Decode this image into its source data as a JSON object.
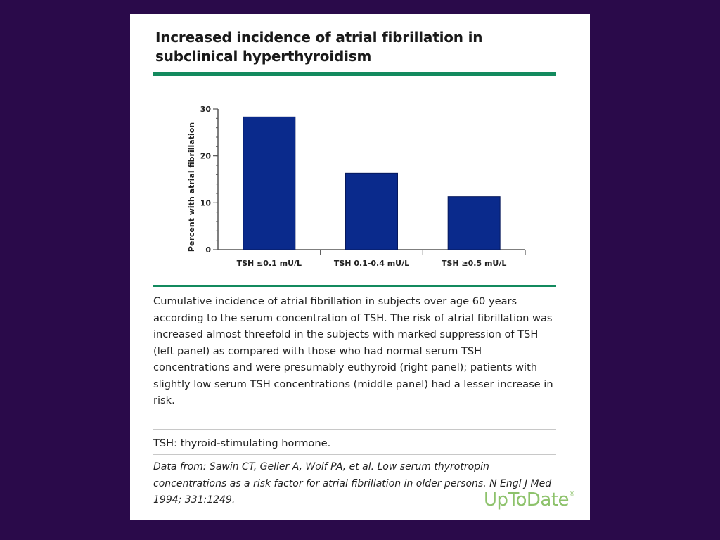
{
  "figure": {
    "title": "Increased incidence of atrial fibrillation in subclinical hyperthyroidism",
    "caption": "Cumulative incidence of atrial fibrillation in subjects over age 60 years according to the serum concentration of TSH. The risk of atrial fibrillation was increased almost threefold in the subjects with marked suppression of TSH (left panel) as compared with those who had normal serum TSH concentrations and were presumably euthyroid (right panel); patients with slightly low serum TSH concentrations (middle panel) had a lesser increase in risk.",
    "abbreviation": "TSH: thyroid-stimulating hormone.",
    "source": "Data from: Sawin CT, Geller A, Wolf PA, et al. Low serum thyrotropin concentrations as a risk factor for atrial fibrillation in older persons. N Engl J Med 1994; 331:1249.",
    "logo_text": "UpToDate",
    "logo_mark": "®",
    "colors": {
      "background": "#2a0a4a",
      "card": "#ffffff",
      "accent_rule": "#138a5e",
      "bar_fill": "#0a2a8c",
      "logo": "#8dc26b"
    }
  },
  "chart_data": {
    "type": "bar",
    "title": "",
    "categories": [
      "TSH ≤0.1 mU/L",
      "TSH 0.1-0.4 mU/L",
      "TSH ≥0.5 mU/L"
    ],
    "values": [
      28.3,
      16.3,
      11.3
    ],
    "xlabel": "",
    "ylabel": "Percent with atrial fibrillation",
    "ylim": [
      0,
      30
    ],
    "yticks": [
      0,
      10,
      20,
      30
    ],
    "grid": false,
    "legend": "none"
  }
}
